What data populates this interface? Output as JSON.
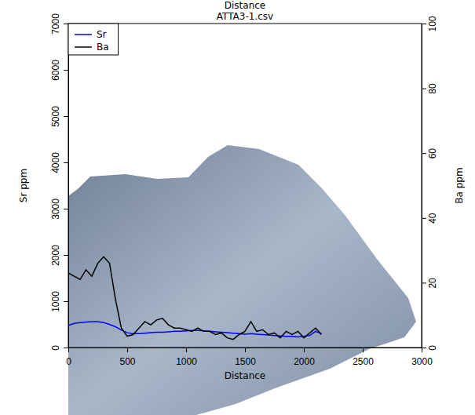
{
  "chart_data": {
    "type": "line",
    "title": "ATTA3-1.csv",
    "subtitle": "Distance",
    "x_label": "Distance",
    "y_label": "Sr ppm",
    "y2_label": "Ba ppm",
    "x": [
      0,
      50,
      100,
      150,
      200,
      250,
      300,
      350,
      400,
      450,
      500,
      550,
      600,
      650,
      700,
      750,
      800,
      850,
      900,
      950,
      1000,
      1050,
      1100,
      1150,
      1200,
      1250,
      1300,
      1350,
      1400,
      1450,
      1500,
      1550,
      1600,
      1650,
      1700,
      1750,
      1800,
      1850,
      1900,
      1950,
      2000,
      2050,
      2100,
      2150
    ],
    "series": [
      {
        "name": "Sr",
        "color": "#0000ff",
        "values": [
          480,
          520,
          540,
          550,
          560,
          560,
          540,
          500,
          450,
          380,
          320,
          300,
          300,
          310,
          320,
          330,
          330,
          340,
          350,
          350,
          360,
          370,
          370,
          360,
          350,
          340,
          330,
          320,
          310,
          300,
          290,
          300,
          290,
          280,
          270,
          260,
          250,
          240,
          240,
          230,
          240,
          260,
          350,
          300
        ]
      },
      {
        "name": "Ba",
        "color": "#000000",
        "axis": "y2",
        "values": [
          23,
          22,
          21,
          24,
          22,
          26,
          28,
          26,
          15,
          6,
          3.5,
          4,
          6,
          8,
          7,
          8.5,
          9,
          7,
          6,
          6,
          5.5,
          5,
          6,
          5,
          5,
          4,
          4.5,
          3,
          2.5,
          4,
          5,
          8,
          5,
          5.5,
          4,
          4.5,
          3,
          5,
          4,
          5,
          3,
          4.5,
          6,
          4
        ]
      }
    ],
    "xlim": [
      0,
      3000
    ],
    "xticks": [
      0,
      500,
      1000,
      1500,
      2000,
      2500,
      3000
    ],
    "ylim": [
      0,
      7000
    ],
    "yticks": [
      0,
      1000,
      2000,
      3000,
      4000,
      5000,
      6000,
      7000
    ],
    "y2lim": [
      0,
      100
    ],
    "y2ticks": [
      0,
      20,
      40,
      60,
      80,
      100
    ],
    "legend": "top-left"
  }
}
